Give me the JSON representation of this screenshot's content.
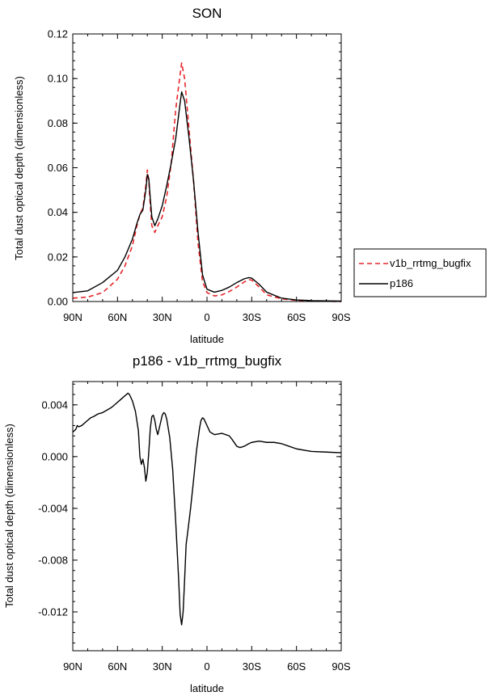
{
  "chart_data": [
    {
      "type": "line",
      "title": "SON",
      "xlabel": "latitude",
      "ylabel": "Total dust optical depth (dimensionless)",
      "xlim": [
        90,
        -90
      ],
      "ylim": [
        0,
        0.12
      ],
      "x_ticks": [
        90,
        60,
        30,
        0,
        -30,
        -60,
        -90
      ],
      "x_tick_labels": [
        "90N",
        "60N",
        "30N",
        "0",
        "30S",
        "60S",
        "90S"
      ],
      "y_ticks": [
        0,
        0.02,
        0.04,
        0.06,
        0.08,
        0.1,
        0.12
      ],
      "y_tick_labels": [
        "0.00",
        "0.02",
        "0.04",
        "0.06",
        "0.08",
        "0.10",
        "0.12"
      ],
      "legend": "right",
      "series": [
        {
          "name": "v1b_rrtmg_bugfix",
          "color": "#e8262b",
          "dash": "dashed",
          "x": [
            90,
            80,
            70,
            60,
            55,
            50,
            47,
            45,
            43,
            41,
            40,
            39,
            38,
            37,
            35,
            33,
            30,
            27,
            24,
            21,
            18,
            17,
            15,
            12,
            9,
            6,
            3,
            0,
            -5,
            -10,
            -15,
            -20,
            -25,
            -28,
            -30,
            -35,
            -40,
            -50,
            -60,
            -70,
            -80,
            -90
          ],
          "y": [
            0.0015,
            0.002,
            0.004,
            0.01,
            0.016,
            0.025,
            0.034,
            0.039,
            0.042,
            0.052,
            0.059,
            0.054,
            0.043,
            0.034,
            0.031,
            0.034,
            0.038,
            0.047,
            0.062,
            0.086,
            0.102,
            0.107,
            0.1,
            0.077,
            0.054,
            0.026,
            0.009,
            0.004,
            0.0025,
            0.003,
            0.0045,
            0.0065,
            0.0088,
            0.0098,
            0.0096,
            0.0065,
            0.003,
            0.0012,
            0.0005,
            0.0002,
            0.0001,
            0.0
          ]
        },
        {
          "name": "p186",
          "color": "#000000",
          "dash": "solid",
          "x": [
            90,
            80,
            70,
            60,
            55,
            50,
            47,
            45,
            43,
            41,
            40,
            39,
            38,
            37,
            35,
            33,
            30,
            27,
            24,
            21,
            18,
            17,
            15,
            12,
            9,
            6,
            3,
            0,
            -5,
            -10,
            -15,
            -20,
            -25,
            -28,
            -30,
            -35,
            -40,
            -50,
            -60,
            -70,
            -80,
            -90
          ],
          "y": [
            0.004,
            0.0048,
            0.0085,
            0.014,
            0.02,
            0.028,
            0.035,
            0.039,
            0.041,
            0.05,
            0.057,
            0.055,
            0.046,
            0.038,
            0.034,
            0.037,
            0.043,
            0.052,
            0.062,
            0.073,
            0.089,
            0.094,
            0.09,
            0.073,
            0.054,
            0.031,
            0.012,
            0.0055,
            0.0042,
            0.005,
            0.0065,
            0.0085,
            0.0102,
            0.0107,
            0.0105,
            0.0077,
            0.0042,
            0.0015,
            0.0007,
            0.0004,
            0.0003,
            0.0002
          ]
        }
      ]
    },
    {
      "type": "line",
      "title": "p186 - v1b_rrtmg_bugfix",
      "xlabel": "latitude",
      "ylabel": "Total dust optical depth (dimensionless)",
      "xlim": [
        90,
        -90
      ],
      "ylim": [
        -0.015,
        0.0058
      ],
      "x_ticks": [
        90,
        60,
        30,
        0,
        -30,
        -60,
        -90
      ],
      "x_tick_labels": [
        "90N",
        "60N",
        "30N",
        "0",
        "30S",
        "60S",
        "90S"
      ],
      "y_ticks": [
        0.004,
        0.0,
        -0.004,
        -0.008,
        -0.012
      ],
      "y_tick_labels": [
        "0.004",
        "0.000",
        "-0.004",
        "-0.008",
        "-0.012"
      ],
      "series": [
        {
          "color": "#000000",
          "dash": "solid",
          "x": [
            90,
            88,
            87,
            86,
            84,
            80,
            78,
            76,
            73,
            70,
            67,
            64,
            61,
            58,
            56,
            54,
            53,
            52,
            50,
            48,
            46,
            45,
            44,
            43,
            42,
            41,
            40,
            39,
            38,
            37,
            36,
            35,
            34,
            33,
            32,
            30,
            29,
            28,
            27,
            25,
            23,
            21,
            19,
            18,
            17,
            16,
            15,
            14,
            13,
            11,
            9,
            7,
            5,
            4,
            3,
            2,
            0,
            -2,
            -5,
            -10,
            -15,
            -17,
            -20,
            -22,
            -25,
            -28,
            -30,
            -35,
            -40,
            -45,
            -50,
            -55,
            -60,
            -70,
            -80,
            -90
          ],
          "y": [
            0.0019,
            0.0021,
            0.0024,
            0.0023,
            0.0024,
            0.0028,
            0.003,
            0.0031,
            0.0033,
            0.0034,
            0.0036,
            0.0038,
            0.0041,
            0.0044,
            0.0046,
            0.0048,
            0.0049,
            0.0048,
            0.0043,
            0.0035,
            0.002,
            0.0,
            -0.0006,
            -0.0002,
            -0.0008,
            -0.0019,
            -0.0012,
            0.0004,
            0.0022,
            0.0031,
            0.0032,
            0.0028,
            0.0021,
            0.0017,
            0.0022,
            0.0032,
            0.0034,
            0.0033,
            0.0029,
            0.0015,
            -0.001,
            -0.005,
            -0.0095,
            -0.0122,
            -0.013,
            -0.012,
            -0.0095,
            -0.0068,
            -0.0059,
            -0.004,
            -0.0018,
            0.0005,
            0.0022,
            0.0028,
            0.003,
            0.0029,
            0.0024,
            0.0019,
            0.0017,
            0.0018,
            0.0016,
            0.0013,
            0.0008,
            0.0007,
            0.0008,
            0.001,
            0.0011,
            0.0012,
            0.0011,
            0.0011,
            0.001,
            0.0008,
            0.0006,
            0.0004,
            0.00035,
            0.0003
          ]
        }
      ]
    }
  ]
}
